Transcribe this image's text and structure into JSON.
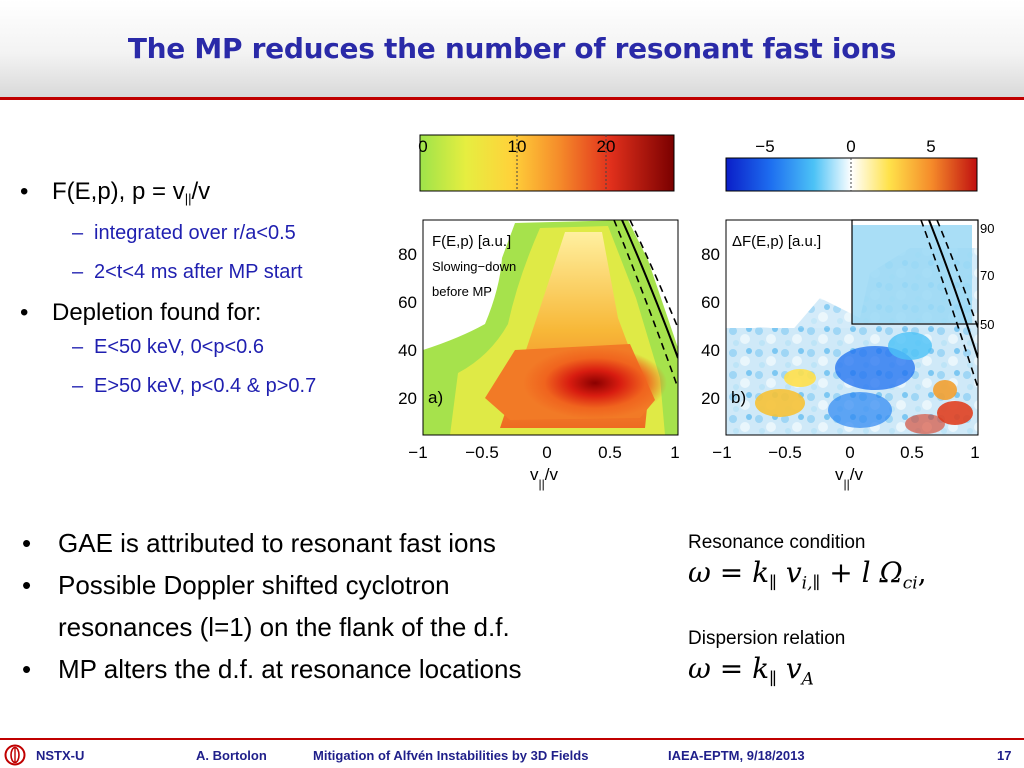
{
  "title": "The MP reduces the number of resonant fast ions",
  "top_bullets": [
    {
      "level": 1,
      "text": "F(E,p), p = v",
      "sub": "||",
      "after": "/v"
    },
    {
      "level": 2,
      "text": "integrated over r/a<0.5"
    },
    {
      "level": 2,
      "text": "2<t<4 ms after MP start"
    },
    {
      "level": 1,
      "text": "Depletion found for:"
    },
    {
      "level": 2,
      "text": "E<50 keV, 0<p<0.6"
    },
    {
      "level": 2,
      "text": "E>50 keV, p<0.4 & p>0.7"
    }
  ],
  "bottom_bullets": [
    "GAE is attributed to resonant fast ions",
    "Possible Doppler shifted cyclotron",
    "resonances (l=1) on the flank of the d.f.",
    "MP alters the d.f. at resonance locations"
  ],
  "equations": {
    "resonance_label": "Resonance condition",
    "dispersion_label": "Dispersion relation"
  },
  "figure": {
    "panel_a": {
      "colorbar_ticks": [
        "0",
        "10",
        "20"
      ],
      "label_line1": "F(E,p) [a.u.]",
      "label_line2": "Slowing−down",
      "label_line3": "before MP",
      "panel_tag": "a)",
      "y_ticks": [
        "80",
        "60",
        "40",
        "20"
      ],
      "x_ticks": [
        "−1",
        "−0.5",
        "0",
        "0.5",
        "1"
      ],
      "x_label": "v",
      "x_label_sub": "||",
      "x_label_after": "/v"
    },
    "panel_b": {
      "colorbar_ticks": [
        "−5",
        "0",
        "5"
      ],
      "label_line1": "ΔF(E,p) [a.u.]",
      "panel_tag": "b)",
      "y_ticks": [
        "80",
        "60",
        "40",
        "20"
      ],
      "right_ticks": [
        "90",
        "70",
        "50"
      ],
      "x_ticks": [
        "−1",
        "−0.5",
        "0",
        "0.5",
        "1"
      ],
      "x_label": "v",
      "x_label_sub": "||",
      "x_label_after": "/v"
    },
    "colors": {
      "jet_low": "#8fd63a",
      "jet_mid": "#f2b833",
      "jet_high": "#7a0000",
      "div_low": "#0a1ec8",
      "div_mid": "#ffffff",
      "div_high": "#c01010"
    }
  },
  "footer": {
    "org": "NSTX-U",
    "author": "A. Bortolon",
    "talk": "Mitigation of Alfvén Instabilities by 3D Fields",
    "meeting": "IAEA-EPTM, 9/18/2013",
    "page": "17"
  }
}
